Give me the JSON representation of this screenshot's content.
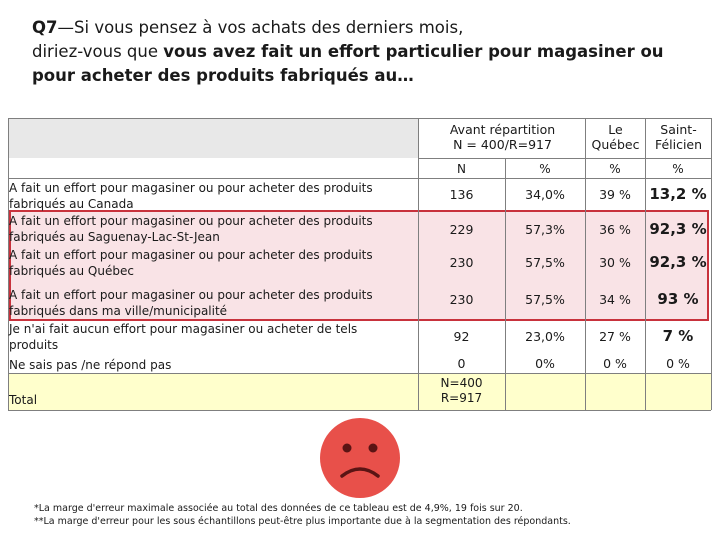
{
  "title": {
    "q_label": "Q7",
    "dash": "—",
    "part1": "Si vous pensez à vos achats des derniers mois,",
    "part2": "diriez-vous que ",
    "bold": "vous avez fait un effort particulier pour magasiner ou pour acheter des produits fabriqués au…"
  },
  "columns": {
    "avant": "Avant répartition\nN = 400/R=917",
    "quebec": "Le\nQuébec",
    "stfelicien": "Saint-\nFélicien"
  },
  "subheaders": {
    "n": "N",
    "pct1": "%",
    "pct2": "%",
    "pct3": "%"
  },
  "rows": [
    {
      "label": "A fait un effort pour magasiner ou pour acheter des produits fabriqués au Canada",
      "n": "136",
      "pct": "34,0%",
      "quebec": "39 %",
      "stf": "13,2 %"
    },
    {
      "label": "A fait un effort pour magasiner ou pour acheter des produits fabriqués au Saguenay-Lac-St-Jean",
      "n": "229",
      "pct": "57,3%",
      "quebec": "36 %",
      "stf": "92,3 %"
    },
    {
      "label": "A fait un effort pour magasiner ou pour acheter des produits fabriqués au Québec",
      "n": "230",
      "pct": "57,5%",
      "quebec": "30 %",
      "stf": "92,3 %"
    },
    {
      "label": "A fait un effort pour magasiner ou pour acheter des produits fabriqués dans ma ville/municipalité",
      "n": "230",
      "pct": "57,5%",
      "quebec": "34 %",
      "stf": "93 %"
    },
    {
      "label": "Je n'ai fait aucun effort pour magasiner ou acheter de tels produits",
      "n": "92",
      "pct": "23,0%",
      "quebec": "27 %",
      "stf": "7 %"
    },
    {
      "label": "Ne sais pas /ne répond pas",
      "n": "0",
      "pct": "0%",
      "quebec": "0 %",
      "stf": "0 %"
    }
  ],
  "total": {
    "label": "Total",
    "n": "N=400\nR=917"
  },
  "notes": {
    "note1": "*La marge d'erreur maximale associée au total des données de ce tableau est de 4,9%, 19 fois sur 20.",
    "note2": "**La marge d'erreur pour les sous échantillons peut-être plus importante due à la segmentation des répondants."
  },
  "colors": {
    "highlight_border": "#c8323c",
    "highlight_fill": "#f2c0c8",
    "total_fill": "#ffffcc",
    "smiley_face": "#e8504a"
  },
  "icons": {
    "smiley": "sad-face-icon"
  }
}
